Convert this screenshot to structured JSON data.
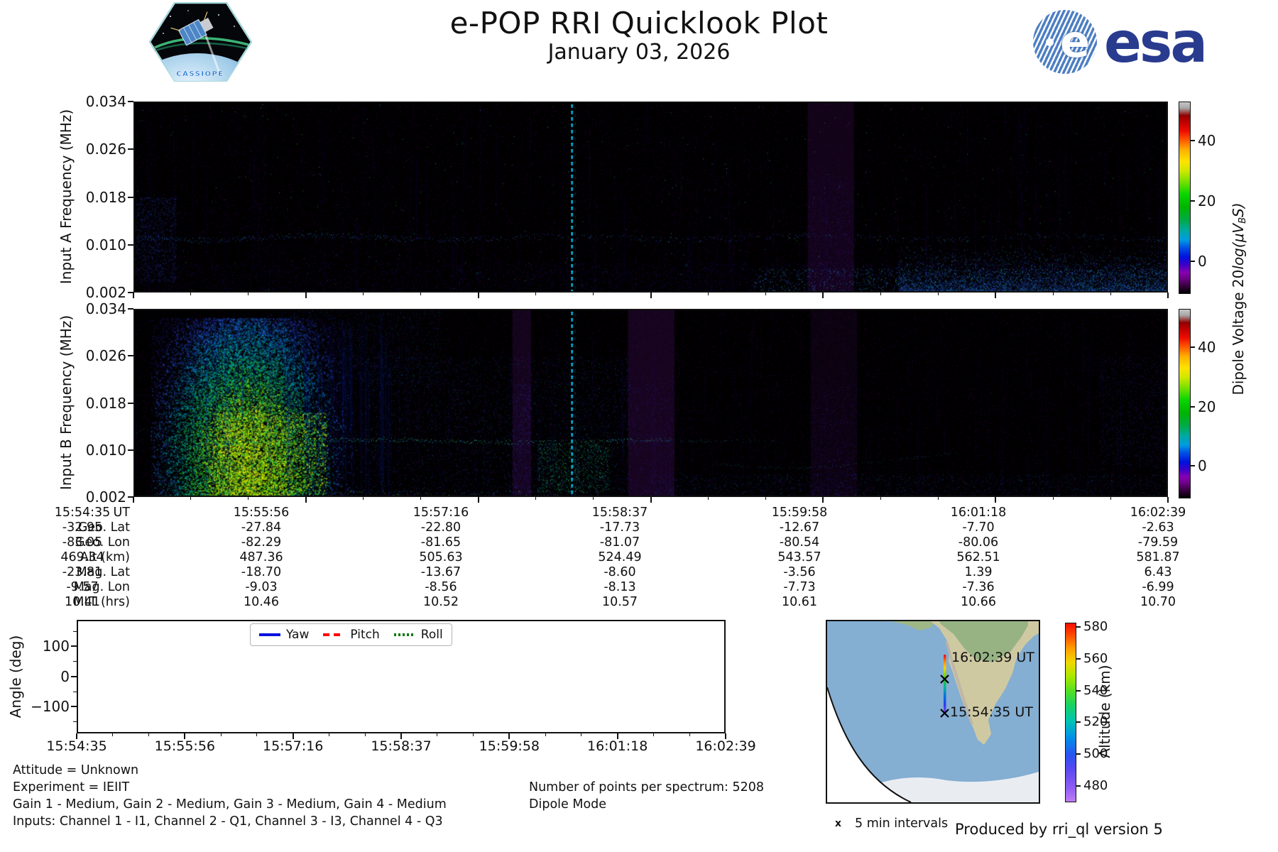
{
  "header": {
    "title": "e-POP RRI Quicklook Plot",
    "date": "January 03, 2026",
    "cassiope_patch_label": "CASSIOPE",
    "esa_logo_text": "esa"
  },
  "spectrograms": {
    "panel_a_ylabel": "Input A Frequency (MHz)",
    "panel_b_ylabel": "Input B Frequency (MHz)",
    "freq_ticks": [
      "0.034",
      "0.026",
      "0.018",
      "0.010",
      "0.002"
    ],
    "colorbar": {
      "ticks": [
        "40",
        "20",
        "0"
      ],
      "label_main": "Dipole Voltage 20",
      "label_log": "log",
      "label_paren": "(μV",
      "label_sub": "B",
      "label_s": "S",
      "label_close": ")"
    }
  },
  "ephemeris": {
    "rows": [
      {
        "label": "UT",
        "values": [
          "15:54:35",
          "15:55:56",
          "15:57:16",
          "15:58:37",
          "15:59:58",
          "16:01:18",
          "16:02:39"
        ]
      },
      {
        "label": "Geo. Lat",
        "values": [
          "-32.95",
          "-27.84",
          "-22.80",
          "-17.73",
          "-12.67",
          "-7.70",
          "-2.63"
        ]
      },
      {
        "label": "Geo. Lon",
        "values": [
          "-83.05",
          "-82.29",
          "-81.65",
          "-81.07",
          "-80.54",
          "-80.06",
          "-79.59"
        ]
      },
      {
        "label": "Alt (km)",
        "values": [
          "469.34",
          "487.36",
          "505.63",
          "524.49",
          "543.57",
          "562.51",
          "581.87"
        ]
      },
      {
        "label": "Mag. Lat",
        "values": [
          "-23.81",
          "-18.70",
          "-13.67",
          "-8.60",
          "-3.56",
          "1.39",
          "6.43"
        ]
      },
      {
        "label": "Mag. Lon",
        "values": [
          "-9.57",
          "-9.03",
          "-8.56",
          "-8.13",
          "-7.73",
          "-7.36",
          "-6.99"
        ]
      },
      {
        "label": "MLT (hrs)",
        "values": [
          "10.41",
          "10.46",
          "10.52",
          "10.57",
          "10.61",
          "10.66",
          "10.70"
        ]
      }
    ]
  },
  "angle_plot": {
    "ylabel": "Angle (deg)",
    "yticks": [
      "100",
      "0",
      "−100"
    ],
    "xticks": [
      "15:54:35",
      "15:55:56",
      "15:57:16",
      "15:58:37",
      "15:59:58",
      "16:01:18",
      "16:02:39"
    ],
    "legend": [
      {
        "label": "Yaw",
        "color": "#0011dd",
        "style": "solid"
      },
      {
        "label": "Pitch",
        "color": "#ff0000",
        "style": "dashed"
      },
      {
        "label": "Roll",
        "color": "#0a7a0a",
        "style": "dotted"
      }
    ]
  },
  "info_text": {
    "attitude": "Attitude = Unknown",
    "experiment": "Experiment = IEIIT",
    "gains": "Gain 1 - Medium, Gain 2 - Medium, Gain 3 - Medium, Gain 4 - Medium",
    "inputs": "Inputs: Channel 1 - I1, Channel 2 - Q1, Channel 3 - I3, Channel 4 - Q3",
    "points": "Number of points per spectrum: 5208",
    "mode": "Dipole Mode"
  },
  "map": {
    "end_time_label": "16:02:39 UT",
    "start_time_label": "15:54:35 UT",
    "colorbar_label": "Altitude (km)",
    "colorbar_ticks": [
      "580",
      "560",
      "540",
      "520",
      "500",
      "480"
    ],
    "interval_marker": "x",
    "interval_legend": "5 min intervals"
  },
  "footer": {
    "credit": "Produced by rri_ql version 5"
  },
  "colors": {
    "esa_blue": "#293b8e",
    "yaw": "#0011dd",
    "pitch": "#ff0000",
    "roll": "#0a7a0a",
    "ocean": "#84aed2",
    "land": "#cfc9a2",
    "amazon_green": "#93b283",
    "antarctica": "#e9edf1"
  },
  "chart_data": [
    {
      "type": "heatmap",
      "name": "input_a_spectrogram",
      "ylabel": "Input A Frequency (MHz)",
      "y_ticks_mhz": [
        0.034,
        0.026,
        0.018,
        0.01,
        0.002
      ],
      "x_ticks_ut": [
        "15:54:35",
        "15:55:56",
        "15:57:16",
        "15:58:37",
        "15:59:58",
        "16:01:18",
        "16:02:39"
      ],
      "colorbar": {
        "label": "Dipole Voltage 20log(μV_B S)",
        "ticks": [
          0,
          20,
          40
        ]
      },
      "summary": "Mostly near noise floor (black/dark purple). Faint narrow blue band near 0.011 MHz across the pass, weak blue enhancement below 0.006 MHz growing toward 16:02:39, bright dashed cyan interference line near 15:58:10, diffuse purple column near 16:01."
    },
    {
      "type": "heatmap",
      "name": "input_b_spectrogram",
      "ylabel": "Input B Frequency (MHz)",
      "y_ticks_mhz": [
        0.034,
        0.026,
        0.018,
        0.01,
        0.002
      ],
      "x_ticks_ut": [
        "15:54:35",
        "15:55:56",
        "15:57:16",
        "15:58:37",
        "15:59:58",
        "16:01:18",
        "16:02:39"
      ],
      "colorbar": {
        "label": "Dipole Voltage 20log(μV_B S)",
        "ticks": [
          0,
          20,
          40
        ]
      },
      "summary": "Strong broadband emission 15:54:45–15:55:40 reaching green/yellow intensities below ~0.015 MHz, structured blue emission until ~15:56:30, green band near 0.011 MHz extending to ~15:58, purple columns near 15:58:30 and 16:01, weak blue activity near the low-frequency edge after 16:00."
    },
    {
      "type": "line",
      "name": "attitude_angles",
      "ylabel": "Angle (deg)",
      "yticks": [
        100,
        0,
        -100
      ],
      "x_ticks_ut": [
        "15:54:35",
        "15:55:56",
        "15:57:16",
        "15:58:37",
        "15:59:58",
        "16:01:18",
        "16:02:39"
      ],
      "series": [
        {
          "name": "Yaw",
          "color": "#0011dd",
          "style": "solid",
          "values": []
        },
        {
          "name": "Pitch",
          "color": "#ff0000",
          "style": "dashed",
          "values": []
        },
        {
          "name": "Roll",
          "color": "#0a7a0a",
          "style": "dotted",
          "values": []
        }
      ],
      "note": "No attitude data plotted (Attitude = Unknown)"
    },
    {
      "type": "table",
      "name": "ephemeris",
      "columns": [
        "UT",
        "Geo. Lat",
        "Geo. Lon",
        "Alt (km)",
        "Mag. Lat",
        "Mag. Lon",
        "MLT (hrs)"
      ],
      "rows": [
        [
          "15:54:35",
          -32.95,
          -83.05,
          469.34,
          -23.81,
          -9.57,
          10.41
        ],
        [
          "15:55:56",
          -27.84,
          -82.29,
          487.36,
          -18.7,
          -9.03,
          10.46
        ],
        [
          "15:57:16",
          -22.8,
          -81.65,
          505.63,
          -13.67,
          -8.56,
          10.52
        ],
        [
          "15:58:37",
          -17.73,
          -81.07,
          524.49,
          -8.6,
          -8.13,
          10.57
        ],
        [
          "15:59:58",
          -12.67,
          -80.54,
          543.57,
          -3.56,
          -7.73,
          10.61
        ],
        [
          "16:01:18",
          -7.7,
          -80.06,
          562.51,
          1.39,
          -7.36,
          10.66
        ],
        [
          "16:02:39",
          -2.63,
          -79.59,
          581.87,
          6.43,
          -6.99,
          10.7
        ]
      ]
    },
    {
      "type": "map",
      "name": "ground_track",
      "region": "South America / eastern Pacific, northbound pass along Peru-Chile coast",
      "track_start": {
        "ut": "15:54:35 UT",
        "alt_km": 469.34
      },
      "track_end": {
        "ut": "16:02:39 UT",
        "alt_km": 581.87
      },
      "colorbar": {
        "label": "Altitude (km)",
        "ticks": [
          480,
          500,
          520,
          540,
          560,
          580
        ]
      },
      "markers": "x at 5 min intervals"
    }
  ]
}
